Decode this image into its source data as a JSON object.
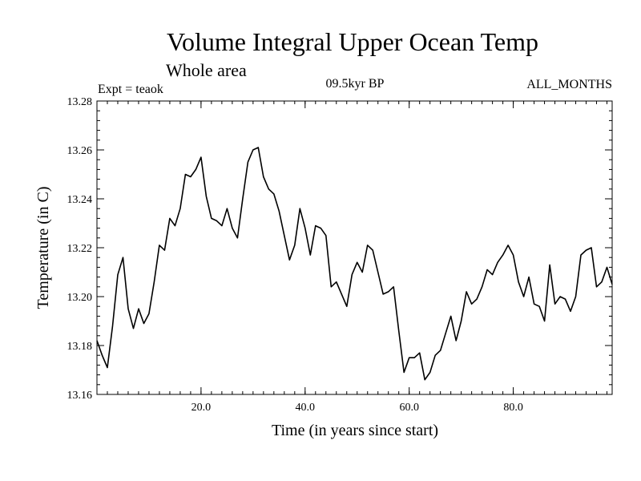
{
  "chart_data": {
    "type": "line",
    "title": "Volume Integral Upper Ocean Temp",
    "subtitle": "Whole area",
    "experiment": "Expt = teaok",
    "period": "09.5kyr BP",
    "months": "ALL_MONTHS",
    "xlabel": "Time (in years since start)",
    "ylabel": "Temperature (in C)",
    "xlim": [
      0,
      99
    ],
    "ylim": [
      13.16,
      13.28
    ],
    "x_ticks": [
      20,
      40,
      60,
      80
    ],
    "x_tick_labels": [
      "20.0",
      "40.0",
      "60.0",
      "80.0"
    ],
    "y_ticks": [
      13.16,
      13.18,
      13.2,
      13.22,
      13.24,
      13.26,
      13.28
    ],
    "y_tick_labels": [
      "13.16",
      "13.18",
      "13.20",
      "13.22",
      "13.24",
      "13.26",
      "13.28"
    ],
    "x_minor_step": 2,
    "y_minor_step": 0.004,
    "series": [
      {
        "name": "Temperature",
        "color": "#000000",
        "x": [
          0,
          1,
          2,
          3,
          4,
          5,
          6,
          7,
          8,
          9,
          10,
          11,
          12,
          13,
          14,
          15,
          16,
          17,
          18,
          19,
          20,
          21,
          22,
          23,
          24,
          25,
          26,
          27,
          28,
          29,
          30,
          31,
          32,
          33,
          34,
          35,
          36,
          37,
          38,
          39,
          40,
          41,
          42,
          43,
          44,
          45,
          46,
          47,
          48,
          49,
          50,
          51,
          52,
          53,
          54,
          55,
          56,
          57,
          58,
          59,
          60,
          61,
          62,
          63,
          64,
          65,
          66,
          67,
          68,
          69,
          70,
          71,
          72,
          73,
          74,
          75,
          76,
          77,
          78,
          79,
          80,
          81,
          82,
          83,
          84,
          85,
          86,
          87,
          88,
          89,
          90,
          91,
          92,
          93,
          94,
          95,
          96,
          97,
          98,
          99
        ],
        "values": [
          13.182,
          13.176,
          13.171,
          13.188,
          13.209,
          13.216,
          13.195,
          13.187,
          13.195,
          13.189,
          13.193,
          13.206,
          13.221,
          13.219,
          13.232,
          13.229,
          13.236,
          13.25,
          13.249,
          13.252,
          13.257,
          13.241,
          13.232,
          13.231,
          13.229,
          13.236,
          13.228,
          13.224,
          13.24,
          13.255,
          13.26,
          13.261,
          13.249,
          13.244,
          13.242,
          13.235,
          13.225,
          13.215,
          13.221,
          13.236,
          13.228,
          13.217,
          13.229,
          13.228,
          13.225,
          13.204,
          13.206,
          13.201,
          13.196,
          13.209,
          13.214,
          13.21,
          13.221,
          13.219,
          13.21,
          13.201,
          13.202,
          13.204,
          13.186,
          13.169,
          13.175,
          13.175,
          13.177,
          13.166,
          13.169,
          13.176,
          13.178,
          13.185,
          13.192,
          13.182,
          13.19,
          13.202,
          13.197,
          13.199,
          13.204,
          13.211,
          13.209,
          13.214,
          13.217,
          13.221,
          13.217,
          13.206,
          13.2,
          13.208,
          13.197,
          13.196,
          13.19,
          13.213,
          13.197,
          13.2,
          13.199,
          13.194,
          13.2,
          13.217,
          13.219,
          13.22,
          13.204,
          13.206,
          13.212,
          13.205
        ]
      }
    ]
  }
}
